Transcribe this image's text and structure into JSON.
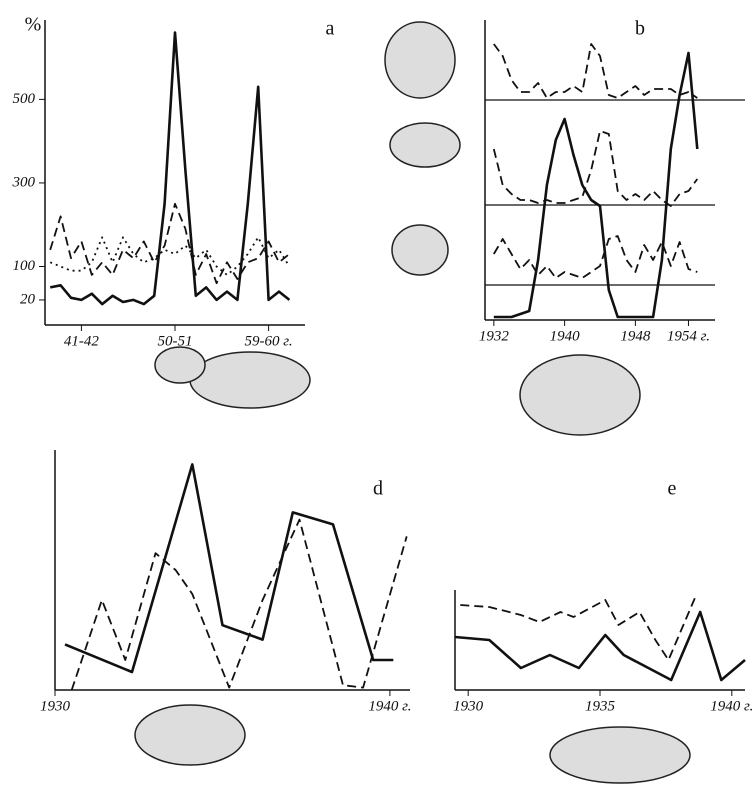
{
  "chart_data": [
    {
      "type": "line",
      "label": "a",
      "ylabel": "%",
      "x": [
        38,
        39,
        40,
        41,
        42,
        43,
        44,
        45,
        46,
        47,
        48,
        49,
        50,
        51,
        52,
        53,
        54,
        55,
        56,
        57,
        58,
        59,
        60,
        61
      ],
      "xlim": [
        37.5,
        62.5
      ],
      "xticks": [
        {
          "value": 41,
          "label": "41-42"
        },
        {
          "value": 50,
          "label": "50-51"
        },
        {
          "value": 59,
          "label": "59-60 г."
        }
      ],
      "ylim": [
        -40,
        690
      ],
      "yticks": [
        20,
        100,
        300,
        500
      ],
      "series": [
        {
          "color": "#111",
          "style": "solid",
          "values": [
            50,
            55,
            25,
            20,
            35,
            10,
            30,
            15,
            20,
            10,
            30,
            250,
            660,
            330,
            30,
            50,
            20,
            40,
            20,
            250,
            530,
            20,
            40,
            20
          ]
        },
        {
          "color": "#111",
          "style": "dashed",
          "values": [
            140,
            220,
            120,
            160,
            80,
            110,
            80,
            140,
            120,
            160,
            110,
            150,
            250,
            190,
            80,
            130,
            60,
            110,
            70,
            110,
            120,
            160,
            110,
            130
          ]
        },
        {
          "color": "#111",
          "style": "dotted",
          "values": [
            110,
            100,
            90,
            90,
            110,
            170,
            110,
            170,
            130,
            110,
            120,
            140,
            130,
            150,
            120,
            140,
            100,
            80,
            100,
            130,
            170,
            120,
            140,
            100
          ]
        }
      ]
    },
    {
      "type": "line",
      "label": "b",
      "x": [
        1932,
        1933,
        1934,
        1935,
        1936,
        1937,
        1938,
        1939,
        1940,
        1941,
        1942,
        1943,
        1944,
        1945,
        1946,
        1947,
        1948,
        1949,
        1950,
        1951,
        1952,
        1953,
        1954,
        1955
      ],
      "xlim": [
        1931,
        1957
      ],
      "xticks": [
        1932,
        1940,
        1948,
        {
          "value": 1954,
          "label": "1954 г."
        }
      ],
      "ylim": [
        0,
        100
      ],
      "series": [
        {
          "color": "#111",
          "style": "dashed",
          "values": [
            92,
            88,
            80,
            76,
            76,
            79,
            74,
            76,
            76,
            78,
            76,
            92,
            88,
            75,
            74,
            76,
            78,
            75,
            77,
            77,
            77,
            75,
            76,
            74
          ]
        },
        {
          "color": "#111",
          "style": "dashed",
          "values": [
            57,
            45,
            42,
            40,
            40,
            39,
            40,
            39,
            39,
            40,
            41,
            50,
            63,
            62,
            43,
            40,
            42,
            40,
            43,
            40,
            38,
            42,
            43,
            47
          ]
        },
        {
          "color": "#111",
          "style": "dashed",
          "values": [
            22,
            27,
            22,
            17,
            20,
            15,
            18,
            14,
            16,
            15,
            14,
            16,
            18,
            27,
            28,
            20,
            16,
            25,
            20,
            26,
            18,
            26,
            17,
            16
          ]
        },
        {
          "color": "#111",
          "style": "solid",
          "values": [
            1,
            1,
            1,
            2,
            3,
            20,
            45,
            60,
            67,
            55,
            45,
            40,
            38,
            10,
            1,
            1,
            1,
            1,
            1,
            20,
            57,
            75,
            89,
            57
          ]
        }
      ]
    },
    {
      "type": "line",
      "label": "d",
      "xlim": [
        1930,
        1940.6
      ],
      "xticks": [
        1930,
        {
          "value": 1940,
          "label": "1940 г."
        }
      ],
      "ylim": [
        0,
        100
      ],
      "series": [
        {
          "color": "#111",
          "style": "solid",
          "x": [
            1930.3,
            1932.3,
            1934.1,
            1935,
            1936.2,
            1937.1,
            1938.3,
            1939.5,
            1940.1
          ],
          "values": [
            19,
            7.5,
            94,
            27,
            21,
            74,
            69,
            12.5,
            12.5
          ]
        },
        {
          "color": "#111",
          "style": "dashed",
          "x": [
            1930.5,
            1931.4,
            1932.1,
            1933,
            1933.6,
            1934.1,
            1935.2,
            1936.2,
            1937.3,
            1938.6,
            1939.2,
            1940.5
          ],
          "values": [
            0,
            37.5,
            12.5,
            57,
            50,
            40,
            1,
            37.5,
            71,
            2,
            1,
            64
          ]
        }
      ]
    },
    {
      "type": "line",
      "label": "e",
      "xlim": [
        1929.5,
        1940.5
      ],
      "xticks": [
        1930,
        1935,
        {
          "value": 1940,
          "label": "1940 г."
        }
      ],
      "ylim": [
        0,
        100
      ],
      "series": [
        {
          "color": "#111",
          "style": "dashed",
          "x": [
            1929.7,
            1930.8,
            1932,
            1932.7,
            1933.5,
            1934,
            1935.2,
            1935.7,
            1936.5,
            1937.1,
            1937.6,
            1938.6
          ],
          "values": [
            85,
            83,
            75,
            68,
            78,
            73,
            90,
            65,
            78,
            50,
            30,
            92
          ]
        },
        {
          "color": "#111",
          "style": "solid",
          "x": [
            1929.5,
            1930.8,
            1932,
            1933.1,
            1934.2,
            1935.2,
            1935.9,
            1937.7,
            1938.8,
            1939.6,
            1940.5
          ],
          "values": [
            53,
            50,
            22,
            35,
            22,
            55,
            35,
            10,
            78,
            10,
            30
          ]
        }
      ]
    }
  ]
}
